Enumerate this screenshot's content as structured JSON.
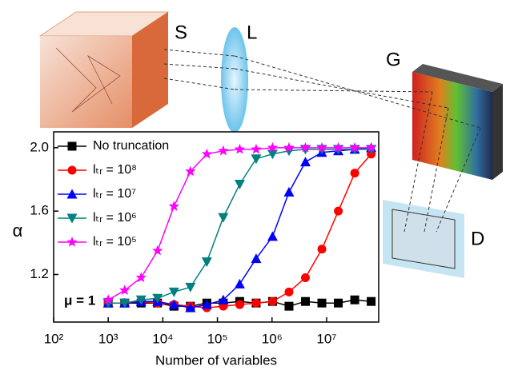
{
  "chart_data": {
    "type": "line",
    "x_label": "Number of variables",
    "y_label": "α",
    "annotation": "μ = 1",
    "log_x": true,
    "legend": "upper left",
    "x": [
      1000,
      2000,
      4000,
      8000,
      16000,
      32000,
      64000,
      128000,
      256000,
      512000,
      1024000,
      2048000,
      4096000,
      8192000,
      16384000,
      32768000,
      65536000
    ],
    "series": [
      {
        "name": "No truncation",
        "color": "#000000",
        "marker": "square",
        "values": [
          1.02,
          1.02,
          1.02,
          1.02,
          1.0,
          1.0,
          1.02,
          1.02,
          1.03,
          1.02,
          1.03,
          1.0,
          1.03,
          1.02,
          1.02,
          1.04,
          1.03
        ]
      },
      {
        "name": "lₜᵣ = 10⁸",
        "color": "#ff0000",
        "marker": "circle",
        "values": [
          1.02,
          1.02,
          1.03,
          1.02,
          1.01,
          1.0,
          0.99,
          1.0,
          1.01,
          1.02,
          1.03,
          1.09,
          1.18,
          1.36,
          1.6,
          1.84,
          1.96
        ]
      },
      {
        "name": "lₜᵣ = 10⁷",
        "color": "#0000ff",
        "marker": "triangle-up",
        "values": [
          1.02,
          1.02,
          1.03,
          1.03,
          1.01,
          0.99,
          1.01,
          1.04,
          1.14,
          1.3,
          1.44,
          1.72,
          1.91,
          1.97,
          1.98,
          1.99,
          2.0
        ]
      },
      {
        "name": "lₜᵣ = 10⁶",
        "color": "#008080",
        "marker": "triangle-down",
        "values": [
          1.02,
          1.02,
          1.04,
          1.05,
          1.09,
          1.12,
          1.28,
          1.56,
          1.77,
          1.93,
          1.96,
          1.98,
          1.99,
          1.99,
          1.99,
          1.99,
          1.99
        ]
      },
      {
        "name": "lₜᵣ = 10⁵",
        "color": "#ff00ff",
        "marker": "star",
        "values": [
          1.04,
          1.1,
          1.18,
          1.35,
          1.63,
          1.85,
          1.96,
          1.98,
          1.99,
          1.99,
          2.0,
          2.0,
          2.0,
          2.0,
          2.0,
          2.0,
          2.0
        ]
      }
    ],
    "xlim": [
      100,
      90000000
    ],
    "xticks": [
      {
        "value": 100,
        "label": "10²"
      },
      {
        "value": 1000,
        "label": "10³"
      },
      {
        "value": 10000,
        "label": "10⁴"
      },
      {
        "value": 100000,
        "label": "10⁵"
      },
      {
        "value": 1000000,
        "label": "10⁶"
      },
      {
        "value": 10000000,
        "label": "10⁷"
      }
    ],
    "ylim": [
      0.9,
      2.1
    ],
    "yticks": [
      1.2,
      1.6,
      {
        "value": 2.0,
        "label": "2.0"
      }
    ]
  },
  "illustration": {
    "labels": [
      "S",
      "L",
      "G",
      "D"
    ]
  }
}
